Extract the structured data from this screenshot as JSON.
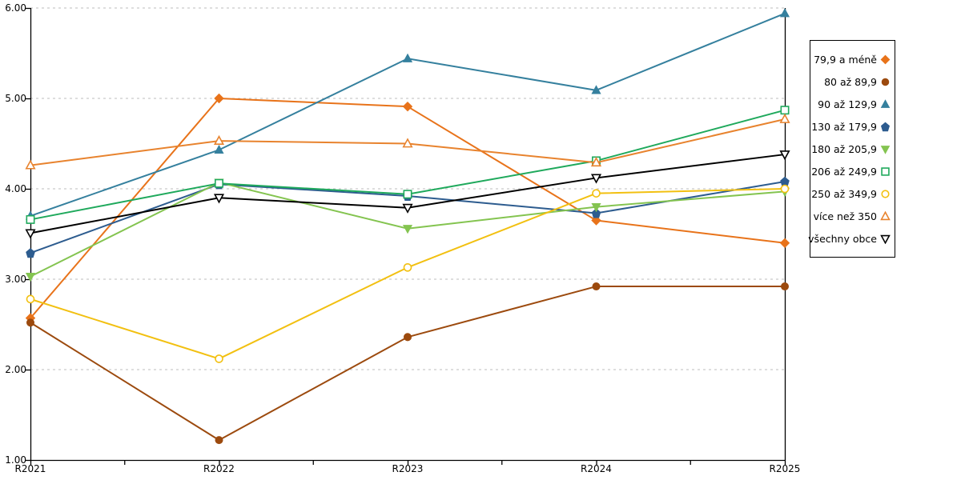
{
  "chart_data": {
    "type": "line",
    "title": "",
    "xlabel": "",
    "ylabel": "",
    "categories": [
      "R2021",
      "R2022",
      "R2023",
      "R2024",
      "R2025"
    ],
    "y_ticks": [
      "6.00",
      "5.00",
      "4.00",
      "3.00",
      "2.00",
      "1.00"
    ],
    "ylim": [
      1.0,
      6.0
    ],
    "grid": "horizontal-dashed",
    "gridline_color": "#bdbdbd",
    "axis_color": "#000000",
    "legend_position": "right",
    "series": [
      {
        "name": "79,9 a méně",
        "marker": "diamond",
        "fill": "solid",
        "color": "#e8731a",
        "values": [
          2.57,
          5.0,
          4.91,
          3.65,
          3.4
        ]
      },
      {
        "name": "80 až 89,9",
        "marker": "circle",
        "fill": "solid",
        "color": "#9c4a0e",
        "values": [
          2.52,
          1.22,
          2.36,
          2.92,
          2.92
        ]
      },
      {
        "name": "90 až 129,9",
        "marker": "triangle-up",
        "fill": "solid",
        "color": "#35809e",
        "values": [
          3.7,
          4.43,
          5.44,
          5.09,
          5.94
        ]
      },
      {
        "name": "130 až 179,9",
        "marker": "pentagon",
        "fill": "solid",
        "color": "#2d5c8f",
        "values": [
          3.29,
          4.05,
          3.92,
          3.73,
          4.08
        ]
      },
      {
        "name": "180 až 205,9",
        "marker": "triangle-down",
        "fill": "solid",
        "color": "#84c450",
        "values": [
          3.03,
          4.07,
          3.56,
          3.8,
          3.97
        ]
      },
      {
        "name": "206 až 249,9",
        "marker": "square",
        "fill": "open",
        "color": "#1fa95c",
        "values": [
          3.66,
          4.06,
          3.94,
          4.31,
          4.87
        ]
      },
      {
        "name": "250 až 349,9",
        "marker": "circle",
        "fill": "open",
        "color": "#f2c011",
        "values": [
          2.78,
          2.12,
          3.13,
          3.95,
          4.0
        ]
      },
      {
        "name": "více než 350",
        "marker": "triangle-up",
        "fill": "open",
        "color": "#e8832e",
        "values": [
          4.26,
          4.53,
          4.5,
          4.29,
          4.77
        ]
      },
      {
        "name": "všechny obce",
        "marker": "triangle-down",
        "fill": "open",
        "color": "#000000",
        "values": [
          3.51,
          3.9,
          3.79,
          4.12,
          4.38
        ]
      }
    ]
  }
}
